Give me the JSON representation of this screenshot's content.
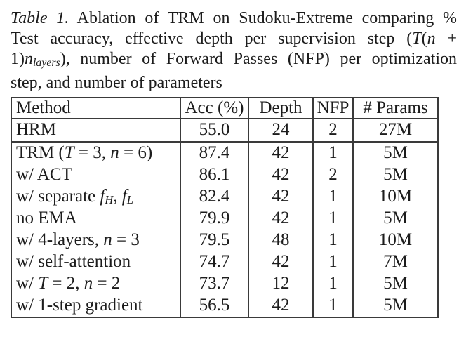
{
  "page": {
    "background": "#ffffff",
    "text_color": "#1c1c1c",
    "rule_color": "#3a3a3a"
  },
  "caption": {
    "line1": {
      "label": "Table 1.",
      "text": " Ablation of TRM on Sudoku-Extreme comparing %"
    },
    "line2": {
      "t1": "Test accuracy, effective depth per supervision step (",
      "t2": "T",
      "t3": "(",
      "t4": "n",
      "t5": " +"
    },
    "line3": {
      "t1": "1)",
      "t2": "n",
      "t3": "layers",
      "t4": "), number of Forward Passes (NFP) per optimization"
    },
    "line4": {
      "text": "step, and number of parameters"
    }
  },
  "table": {
    "headers": [
      "Method",
      "Acc (%)",
      "Depth",
      "NFP",
      "# Params"
    ],
    "baseline_rows": [
      {
        "method": [
          {
            "t": "HRM"
          }
        ],
        "acc": "55.0",
        "depth": "24",
        "nfp": "2",
        "params": "27M"
      }
    ],
    "ablation_rows": [
      {
        "method": [
          {
            "t": "TRM ("
          },
          {
            "t": "T",
            "s": "it"
          },
          {
            "t": " = 3, "
          },
          {
            "t": "n",
            "s": "it"
          },
          {
            "t": " = 6)"
          }
        ],
        "acc": "87.4",
        "depth": "42",
        "nfp": "1",
        "params": "5M"
      },
      {
        "method": [
          {
            "t": "w/ ACT"
          }
        ],
        "acc": "86.1",
        "depth": "42",
        "nfp": "2",
        "params": "5M"
      },
      {
        "method": [
          {
            "t": "w/ separate "
          },
          {
            "t": "f",
            "s": "it"
          },
          {
            "t": "H",
            "s": "sub"
          },
          {
            "t": ", "
          },
          {
            "t": "f",
            "s": "it"
          },
          {
            "t": "L",
            "s": "sub"
          }
        ],
        "acc": "82.4",
        "depth": "42",
        "nfp": "1",
        "params": "10M"
      },
      {
        "method": [
          {
            "t": "no EMA"
          }
        ],
        "acc": "79.9",
        "depth": "42",
        "nfp": "1",
        "params": "5M"
      },
      {
        "method": [
          {
            "t": "w/ 4-layers, "
          },
          {
            "t": "n",
            "s": "it"
          },
          {
            "t": " = 3"
          }
        ],
        "acc": "79.5",
        "depth": "48",
        "nfp": "1",
        "params": "10M"
      },
      {
        "method": [
          {
            "t": "w/ self-attention"
          }
        ],
        "acc": "74.7",
        "depth": "42",
        "nfp": "1",
        "params": "7M"
      },
      {
        "method": [
          {
            "t": "w/ "
          },
          {
            "t": "T",
            "s": "it"
          },
          {
            "t": " = 2, "
          },
          {
            "t": "n",
            "s": "it"
          },
          {
            "t": " = 2"
          }
        ],
        "acc": "73.7",
        "depth": "12",
        "nfp": "1",
        "params": "5M"
      },
      {
        "method": [
          {
            "t": "w/ 1-step gradient"
          }
        ],
        "acc": "56.5",
        "depth": "42",
        "nfp": "1",
        "params": "5M"
      }
    ]
  }
}
